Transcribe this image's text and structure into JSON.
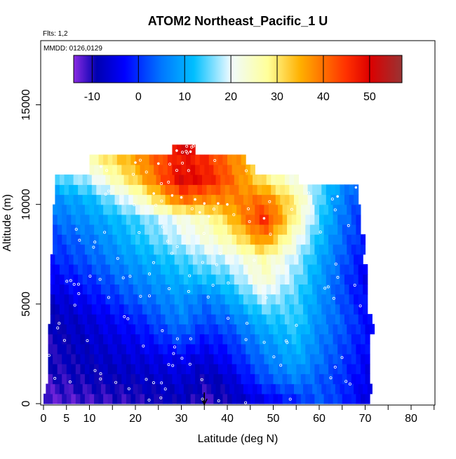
{
  "chart_data": {
    "type": "heatmap",
    "title": "ATOM2 Northeast_Pacific_1 U",
    "subtitle_flts": "Flts: 1,2",
    "subtitle_mmdd": "MMDD: 0126,0129",
    "xlabel": "Latitude (deg N)",
    "ylabel": "Altitude (m)",
    "xlim": [
      0,
      85
    ],
    "ylim": [
      0,
      17500
    ],
    "x_ticks": [
      0,
      5,
      10,
      20,
      30,
      40,
      50,
      60,
      70,
      80
    ],
    "x_minor_ticks": [
      15,
      25,
      35,
      45,
      55,
      65,
      75,
      85
    ],
    "y_ticks": [
      0,
      5000,
      10000,
      15000
    ],
    "colorbar": {
      "range": [
        -14,
        57
      ],
      "ticks": [
        -10,
        0,
        10,
        20,
        30,
        40,
        50
      ],
      "stops": [
        {
          "v": -14,
          "c": "#8a2be2"
        },
        {
          "v": -9,
          "c": "#0000b0"
        },
        {
          "v": -3,
          "c": "#0000ff"
        },
        {
          "v": 5,
          "c": "#0077ff"
        },
        {
          "v": 12,
          "c": "#00bfff"
        },
        {
          "v": 20,
          "c": "#f0fbff"
        },
        {
          "v": 28,
          "c": "#ffff99"
        },
        {
          "v": 35,
          "c": "#ffb000"
        },
        {
          "v": 45,
          "c": "#ff3000"
        },
        {
          "v": 50,
          "c": "#dd0000"
        },
        {
          "v": 57,
          "c": "#993333"
        }
      ]
    },
    "coverage": [
      [
        250,
        0,
        71
      ],
      [
        750,
        0.5,
        71
      ],
      [
        1250,
        1,
        71
      ],
      [
        1750,
        1,
        70.5
      ],
      [
        2250,
        1,
        70.5
      ],
      [
        2750,
        1,
        71
      ],
      [
        3250,
        1,
        71
      ],
      [
        3750,
        1,
        71.5
      ],
      [
        4250,
        1.5,
        71
      ],
      [
        4750,
        1.5,
        70.5
      ],
      [
        5250,
        1.5,
        70.5
      ],
      [
        5750,
        1.5,
        70
      ],
      [
        6250,
        1.5,
        70.5
      ],
      [
        6750,
        1.5,
        70
      ],
      [
        7250,
        1.5,
        69.5
      ],
      [
        7750,
        2,
        69.5
      ],
      [
        8250,
        2,
        69.5
      ],
      [
        8750,
        2,
        69
      ],
      [
        9250,
        2,
        69
      ],
      [
        9750,
        2,
        68.5
      ],
      [
        10250,
        2.5,
        68.5
      ],
      [
        10750,
        2.5,
        68
      ],
      [
        11250,
        2.5,
        55
      ],
      [
        11750,
        10,
        46
      ],
      [
        12250,
        10,
        44
      ],
      [
        12750,
        28,
        33
      ]
    ],
    "anchors": [
      {
        "alt": 250,
        "lat": [
          0,
          10,
          20,
          30,
          35,
          40,
          48,
          55,
          60,
          65,
          71
        ],
        "u": [
          -12,
          -11,
          -10,
          -8,
          -11,
          -9,
          -4,
          0,
          3,
          0,
          -6
        ]
      },
      {
        "alt": 1250,
        "lat": [
          0,
          10,
          20,
          30,
          35,
          40,
          48,
          55,
          60,
          65,
          71
        ],
        "u": [
          -11,
          -9,
          -8,
          -6,
          -9,
          -7,
          2,
          6,
          3,
          0,
          -5
        ]
      },
      {
        "alt": 2250,
        "lat": [
          0,
          10,
          20,
          30,
          35,
          40,
          48,
          55,
          60,
          65,
          71
        ],
        "u": [
          -10,
          -8,
          -6,
          -4,
          -6,
          -3,
          5,
          10,
          5,
          1,
          -4
        ]
      },
      {
        "alt": 3250,
        "lat": [
          0,
          10,
          20,
          30,
          35,
          40,
          48,
          55,
          60,
          65,
          71
        ],
        "u": [
          -10,
          -7,
          -4,
          2,
          -2,
          0,
          8,
          12,
          6,
          2,
          -3
        ]
      },
      {
        "alt": 4250,
        "lat": [
          0,
          10,
          20,
          30,
          35,
          40,
          48,
          55,
          60,
          65,
          71
        ],
        "u": [
          -9,
          -6,
          -1,
          6,
          2,
          4,
          12,
          14,
          7,
          3,
          -3
        ]
      },
      {
        "alt": 5250,
        "lat": [
          0,
          10,
          20,
          30,
          35,
          40,
          48,
          55,
          60,
          65,
          71
        ],
        "u": [
          -8,
          -3,
          3,
          8,
          5,
          9,
          18,
          14,
          8,
          2,
          -4
        ]
      },
      {
        "alt": 6250,
        "lat": [
          0,
          10,
          20,
          30,
          35,
          40,
          48,
          55,
          60,
          65,
          71
        ],
        "u": [
          -5,
          0,
          6,
          11,
          12,
          14,
          24,
          16,
          9,
          2,
          -5
        ]
      },
      {
        "alt": 7250,
        "lat": [
          0,
          10,
          20,
          30,
          35,
          40,
          48,
          55,
          60,
          65,
          71
        ],
        "u": [
          -2,
          3,
          9,
          14,
          17,
          19,
          26,
          18,
          10,
          3,
          -4
        ]
      },
      {
        "alt": 8250,
        "lat": [
          0,
          10,
          20,
          30,
          35,
          40,
          48,
          55,
          60,
          65,
          71
        ],
        "u": [
          0,
          5,
          12,
          19,
          22,
          26,
          38,
          22,
          12,
          4,
          -3
        ]
      },
      {
        "alt": 9250,
        "lat": [
          0,
          10,
          20,
          30,
          35,
          40,
          48,
          55,
          60,
          65,
          71
        ],
        "u": [
          3,
          8,
          14,
          22,
          25,
          32,
          46,
          27,
          14,
          5,
          -2
        ]
      },
      {
        "alt": 10250,
        "lat": [
          0,
          10,
          20,
          30,
          35,
          40,
          48,
          55,
          60,
          65,
          71
        ],
        "u": [
          6,
          11,
          22,
          40,
          38,
          38,
          40,
          28,
          15,
          6,
          -1
        ]
      },
      {
        "alt": 11250,
        "lat": [
          0,
          10,
          20,
          30,
          35,
          40,
          48,
          55,
          60,
          65,
          71
        ],
        "u": [
          12,
          18,
          32,
          50,
          48,
          42,
          30,
          22,
          15,
          8,
          0
        ]
      },
      {
        "alt": 12250,
        "lat": [
          0,
          10,
          20,
          30,
          35,
          40,
          48,
          55,
          60,
          65,
          71
        ],
        "u": [
          20,
          26,
          36,
          48,
          46,
          40,
          30,
          25,
          20,
          15,
          10
        ]
      },
      {
        "alt": 12750,
        "lat": [
          0,
          10,
          20,
          30,
          35,
          40,
          48,
          55,
          60,
          65,
          71
        ],
        "u": [
          30,
          34,
          40,
          50,
          50,
          40,
          30,
          25,
          20,
          15,
          10
        ]
      }
    ],
    "flight_track": [
      [
        12.5,
        11900
      ],
      [
        20,
        12100
      ],
      [
        25,
        12050
      ],
      [
        29,
        12700
      ],
      [
        32,
        12650
      ],
      [
        24,
        10550
      ],
      [
        28,
        10450
      ],
      [
        30,
        10350
      ],
      [
        33,
        10250
      ],
      [
        35,
        10050
      ],
      [
        38,
        10050
      ],
      [
        40,
        10000
      ],
      [
        34,
        9600
      ],
      [
        36,
        9400
      ],
      [
        48,
        9300
      ],
      [
        64,
        10400
      ],
      [
        68,
        10850
      ],
      [
        71,
        10850
      ]
    ],
    "marker": {
      "lat": 35
    }
  }
}
